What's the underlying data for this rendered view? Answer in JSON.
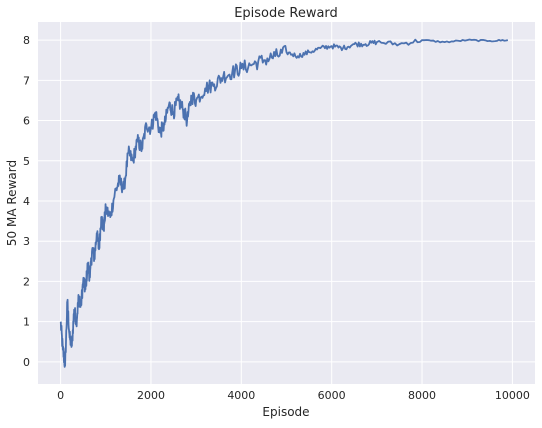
{
  "chart_data": {
    "type": "line",
    "title": "Episode Reward",
    "xlabel": "Episode",
    "ylabel": "50 MA Reward",
    "xlim": [
      -500,
      10500
    ],
    "ylim": [
      -0.55,
      8.45
    ],
    "xticks": [
      0,
      2000,
      4000,
      6000,
      8000,
      10000
    ],
    "yticks": [
      0,
      1,
      2,
      3,
      4,
      5,
      6,
      7,
      8
    ],
    "grid": true,
    "background_color": "#eaeaf2",
    "line_color": "#4c72b0",
    "series": [
      {
        "x": [
          0,
          50,
          100,
          150,
          200,
          250,
          300,
          350,
          400,
          450,
          500,
          550,
          600,
          650,
          700,
          750,
          800,
          850,
          900,
          950,
          1000,
          1100,
          1200,
          1300,
          1400,
          1500,
          1600,
          1700,
          1800,
          1900,
          2000,
          2100,
          2200,
          2300,
          2400,
          2500,
          2600,
          2700,
          2800,
          2900,
          3000,
          3200,
          3400,
          3600,
          3800,
          4000,
          4250,
          4500,
          4750,
          5000,
          5250,
          5500,
          5750,
          6000,
          6250,
          6500,
          6750,
          7000,
          7500,
          8000,
          8500,
          9000,
          9500,
          9900
        ],
        "y": [
          1.0,
          0.3,
          -0.1,
          1.5,
          0.6,
          0.4,
          1.3,
          1.0,
          1.6,
          1.4,
          2.0,
          1.8,
          2.4,
          2.1,
          2.8,
          2.6,
          3.2,
          2.8,
          3.6,
          3.3,
          3.8,
          3.6,
          4.2,
          4.5,
          4.3,
          5.2,
          5.0,
          5.5,
          5.3,
          5.9,
          5.8,
          6.2,
          5.7,
          5.9,
          6.4,
          6.2,
          6.5,
          6.3,
          6.0,
          6.6,
          6.5,
          6.8,
          6.9,
          7.1,
          7.2,
          7.3,
          7.4,
          7.5,
          7.6,
          7.7,
          7.6,
          7.7,
          7.8,
          7.85,
          7.8,
          7.9,
          7.9,
          7.95,
          7.9,
          8.0,
          7.95,
          8.0,
          7.98,
          8.0
        ]
      }
    ]
  }
}
